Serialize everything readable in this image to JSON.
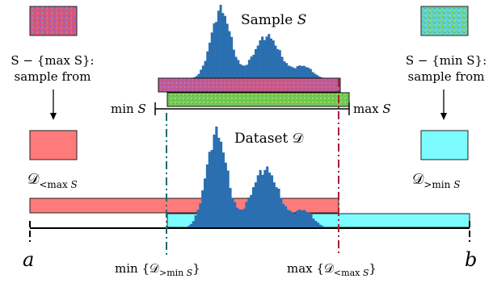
{
  "labels": {
    "sample_title": "Sample",
    "sample_symbol": "S",
    "dataset_title": "Dataset",
    "dataset_symbol": "𝒟",
    "left_rule_line1": "S − {max S}:",
    "left_rule_line2": "sample from",
    "right_rule_line1": "S − {min S}:",
    "right_rule_line2": "sample from",
    "min_s": "min S",
    "max_s": "max S",
    "d_less_max": "𝒟<max S",
    "d_greater_min": "𝒟>min S",
    "axis_a": "a",
    "axis_b": "b",
    "min_d_greater": "min {𝒟>min S}",
    "max_d_less": "max {𝒟<max S}"
  },
  "colors": {
    "histogram": "#2a6fb0",
    "red_region": "#ff7b7b",
    "cyan_region": "#7dfcff",
    "purple_sample": "#8a55c8",
    "green_sample": "#7fc44a",
    "teal_marker": "#1f6b6b",
    "crimson_marker": "#a0203a"
  },
  "icons": {
    "left_noise_patch": "purple-noise-swatch",
    "right_noise_patch": "green-noise-swatch",
    "down_arrow": "down-arrow-icon"
  }
}
